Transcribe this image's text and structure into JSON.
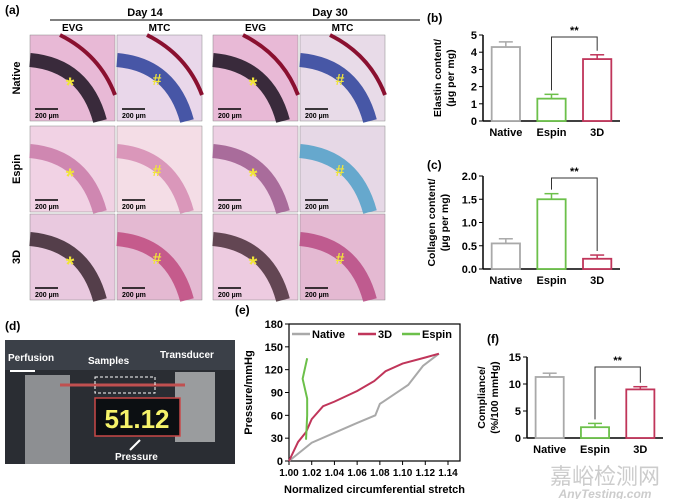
{
  "panel_a": {
    "label": "(a)",
    "days": [
      "Day 14",
      "Day 30"
    ],
    "stains": [
      "EVG",
      "MTC"
    ],
    "rows": [
      "Native",
      "Espin",
      "3D"
    ],
    "scale_bar": "200 µm",
    "tiles": [
      [
        {
          "marker": "*"
        },
        {
          "marker": "#"
        },
        {
          "marker": "*"
        },
        {
          "marker": "#"
        }
      ],
      [
        {
          "marker": "*"
        },
        {
          "marker": "#"
        },
        {
          "marker": "*"
        },
        {
          "marker": "#"
        }
      ],
      [
        {
          "marker": "*"
        },
        {
          "marker": "#"
        },
        {
          "marker": "*"
        },
        {
          "marker": "#"
        }
      ]
    ]
  },
  "panel_d": {
    "label": "(d)",
    "perfusion": "Perfusion",
    "samples": "Samples",
    "transducer": "Transducer",
    "pressure": "Pressure",
    "display": "51.12"
  },
  "colors": {
    "Native": "#a9a9a9",
    "Espin": "#6cc04a",
    "3D": "#c0355a"
  },
  "chart_data": [
    {
      "id": "b",
      "label": "(b)",
      "type": "bar",
      "categories": [
        "Native",
        "Espin",
        "3D"
      ],
      "values": [
        4.3,
        1.3,
        3.6
      ],
      "errors": [
        0.3,
        0.25,
        0.25
      ],
      "ylabel": [
        "Elastin content/",
        "(µg per mg)"
      ],
      "ylim": [
        0,
        5
      ],
      "yticks": [
        0,
        1,
        2,
        3,
        4,
        5
      ],
      "significance": {
        "between": [
          "Espin",
          "3D"
        ],
        "text": "**"
      }
    },
    {
      "id": "c",
      "label": "(c)",
      "type": "bar",
      "categories": [
        "Native",
        "Espin",
        "3D"
      ],
      "values": [
        0.55,
        1.5,
        0.22
      ],
      "errors": [
        0.1,
        0.12,
        0.08
      ],
      "ylabel": [
        "Collagen content/",
        "(µg per mg)"
      ],
      "ylim": [
        0,
        2.0
      ],
      "yticks": [
        "0.0",
        "0.5",
        "1.0",
        "1.5",
        "2.0"
      ],
      "significance": {
        "between": [
          "Espin",
          "3D"
        ],
        "text": "**"
      }
    },
    {
      "id": "e",
      "label": "(e)",
      "type": "line",
      "xlabel": "Normalized circumferential stretch",
      "ylabel": "Pressure/mmHg",
      "xlim": [
        1.0,
        1.14
      ],
      "ylim": [
        0,
        180
      ],
      "xticks": [
        "1.00",
        "1.02",
        "1.04",
        "1.06",
        "1.08",
        "1.10",
        "1.12",
        "1.14"
      ],
      "yticks": [
        0,
        30,
        60,
        90,
        120,
        150,
        180
      ],
      "legend": "top",
      "series": [
        {
          "name": "Native",
          "x": [
            1.0,
            1.02,
            1.04,
            1.06,
            1.076,
            1.08,
            1.1,
            1.105,
            1.118,
            1.132
          ],
          "y": [
            0,
            24,
            37,
            50,
            60,
            75,
            95,
            100,
            125,
            141
          ]
        },
        {
          "name": "3D",
          "x": [
            1.0,
            1.008,
            1.015,
            1.02,
            1.03,
            1.04,
            1.06,
            1.075,
            1.085,
            1.1,
            1.12,
            1.132
          ],
          "y": [
            0,
            25,
            38,
            55,
            72,
            78,
            92,
            105,
            118,
            128,
            136,
            141
          ]
        },
        {
          "name": "Espin",
          "x": [
            1.015,
            1.016,
            1.016,
            1.012,
            1.016
          ],
          "y": [
            28,
            60,
            82,
            108,
            135
          ]
        }
      ]
    },
    {
      "id": "f",
      "label": "(f)",
      "type": "bar",
      "categories": [
        "Native",
        "Espin",
        "3D"
      ],
      "values": [
        11.3,
        2.0,
        9.0
      ],
      "errors": [
        0.7,
        0.7,
        0.5
      ],
      "ylabel": [
        "Compliance/",
        "(%/100 mmHg)"
      ],
      "ylim": [
        0,
        15
      ],
      "yticks": [
        0,
        5,
        10,
        15
      ],
      "significance": {
        "between": [
          "Espin",
          "3D"
        ],
        "text": "**"
      }
    }
  ],
  "watermark": {
    "cn": "嘉峪检测网",
    "en": "AnyTesting.com"
  }
}
